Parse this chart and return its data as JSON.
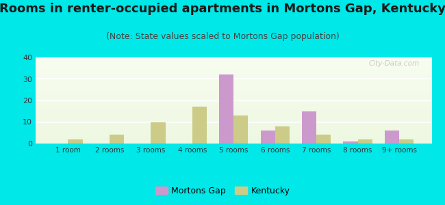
{
  "title": "Rooms in renter-occupied apartments in Mortons Gap, Kentucky",
  "subtitle": "(Note: State values scaled to Mortons Gap population)",
  "categories": [
    "1 room",
    "2 rooms",
    "3 rooms",
    "4 rooms",
    "5 rooms",
    "6 rooms",
    "7 rooms",
    "8 rooms",
    "9+ rooms"
  ],
  "mortons_gap": [
    0,
    0,
    0,
    0,
    32,
    6,
    15,
    1,
    6
  ],
  "kentucky": [
    2,
    4,
    10,
    17,
    13,
    8,
    4,
    2,
    2
  ],
  "mortons_gap_color": "#cc99cc",
  "kentucky_color": "#cccc88",
  "background_color": "#00e8e8",
  "ylim": [
    0,
    40
  ],
  "yticks": [
    0,
    10,
    20,
    30,
    40
  ],
  "bar_width": 0.35,
  "title_fontsize": 13,
  "subtitle_fontsize": 9,
  "watermark": "City-Data.com",
  "legend_mortons": "Mortons Gap",
  "legend_kentucky": "Kentucky"
}
